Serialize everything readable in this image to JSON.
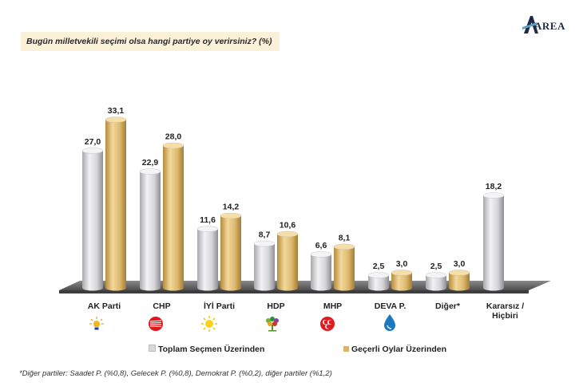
{
  "brand": {
    "name": "AREA",
    "logo_letter": "A"
  },
  "question": "Bugün milletvekili seçimi olsa hangi partiye oy verirsiniz? (%)",
  "footnote": "*Diğer partiler: Saadet P. (%0,8), Gelecek P. (%0,8), Demokrat P. (%0,2), diğer partiler (%1,2)",
  "colors": {
    "series_total": "#d9d9dc",
    "series_valid": "#d7b56d",
    "floor": "#6a6a6a",
    "title_bg": "#fbf1d9"
  },
  "chart_data": {
    "type": "bar",
    "categories": [
      "AK Parti",
      "CHP",
      "İYİ Parti",
      "HDP",
      "MHP",
      "DEVA P.",
      "Diğer*",
      "Kararsız / Hiçbiri"
    ],
    "category_icons": [
      "lightbulb-icon",
      "six-arrows-icon",
      "sun-icon",
      "tree-icon",
      "crescents-icon",
      "water-drop-icon",
      "",
      ""
    ],
    "series": [
      {
        "name": "Toplam Seçmen Üzerinden",
        "values": [
          27.0,
          22.9,
          11.6,
          8.7,
          6.6,
          2.5,
          2.5,
          18.2
        ],
        "labels": [
          "27,0",
          "22,9",
          "11,6",
          "8,7",
          "6,6",
          "2,5",
          "2,5",
          "18,2"
        ]
      },
      {
        "name": "Geçerli Oylar Üzerinden",
        "values": [
          33.1,
          28.0,
          14.2,
          10.6,
          8.1,
          3.0,
          3.0,
          null
        ],
        "labels": [
          "33,1",
          "28,0",
          "14,2",
          "10,6",
          "8,1",
          "3,0",
          "3,0",
          null
        ]
      }
    ],
    "ylim": [
      0,
      36
    ],
    "legend_position": "bottom",
    "grid": false
  }
}
